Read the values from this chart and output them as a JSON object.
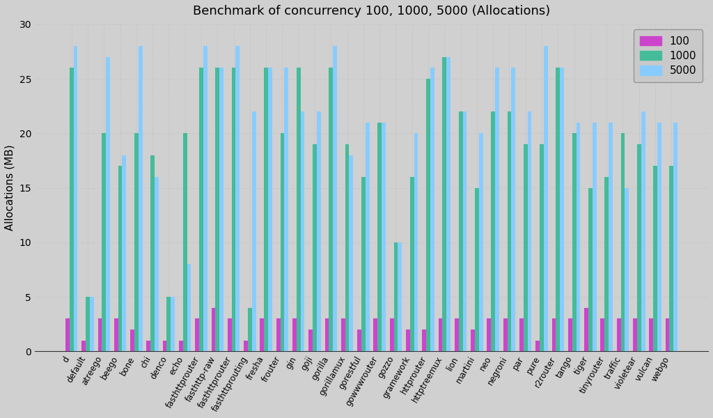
{
  "title": "Benchmark of concurrency 100, 1000, 5000 (Allocations)",
  "ylabel": "Allocations (MB)",
  "ylim": [
    0,
    30
  ],
  "yticks": [
    0,
    5,
    10,
    15,
    20,
    25,
    30
  ],
  "legend_labels": [
    "100",
    "1000",
    "5000"
  ],
  "colors": [
    "#cc44cc",
    "#44bb99",
    "#88ccff"
  ],
  "background_color": "#d0d0d0",
  "categories": [
    "d",
    "default",
    "atreego",
    "beego",
    "bone",
    "chi",
    "denco",
    "echo",
    "fasthttprouter",
    "fasthttp-raw",
    "fasthttprouter",
    "fasthttprouting",
    "fresha",
    "frouter",
    "gin",
    "goji",
    "gorilla",
    "gorillamux",
    "gorestful",
    "gowwwrouter",
    "gozzo",
    "gramework",
    "httprouter",
    "httptreemux",
    "lion",
    "martini",
    "neo",
    "negroni",
    "par",
    "pure",
    "r2router",
    "tango",
    "tiger",
    "tinyrouter",
    "traffic",
    "violetear",
    "vulcan",
    "webgo"
  ],
  "v100": [
    3,
    1,
    3,
    3,
    2,
    1,
    1,
    1,
    3,
    4,
    3,
    1,
    3,
    3,
    3,
    2,
    3,
    3,
    2,
    3,
    3,
    2,
    2,
    3,
    3,
    2,
    3,
    3,
    3,
    1,
    3,
    3,
    4,
    3,
    3,
    3,
    3,
    3
  ],
  "v1000": [
    26,
    5,
    20,
    17,
    20,
    18,
    5,
    20,
    26,
    26,
    26,
    4,
    26,
    20,
    26,
    19,
    26,
    19,
    16,
    21,
    10,
    16,
    25,
    27,
    22,
    15,
    22,
    22,
    19,
    19,
    26,
    20,
    15,
    16,
    20,
    19,
    17,
    17
  ],
  "v5000": [
    28,
    5,
    27,
    18,
    28,
    16,
    5,
    8,
    28,
    26,
    28,
    22,
    26,
    26,
    22,
    22,
    28,
    18,
    21,
    21,
    10,
    20,
    26,
    27,
    22,
    20,
    26,
    26,
    22,
    28,
    26,
    21,
    21,
    21,
    15,
    22,
    21,
    21
  ],
  "bar_width": 0.25,
  "grid_color": "#c0c0c0",
  "figsize": [
    10.24,
    6.0
  ],
  "dpi": 100
}
